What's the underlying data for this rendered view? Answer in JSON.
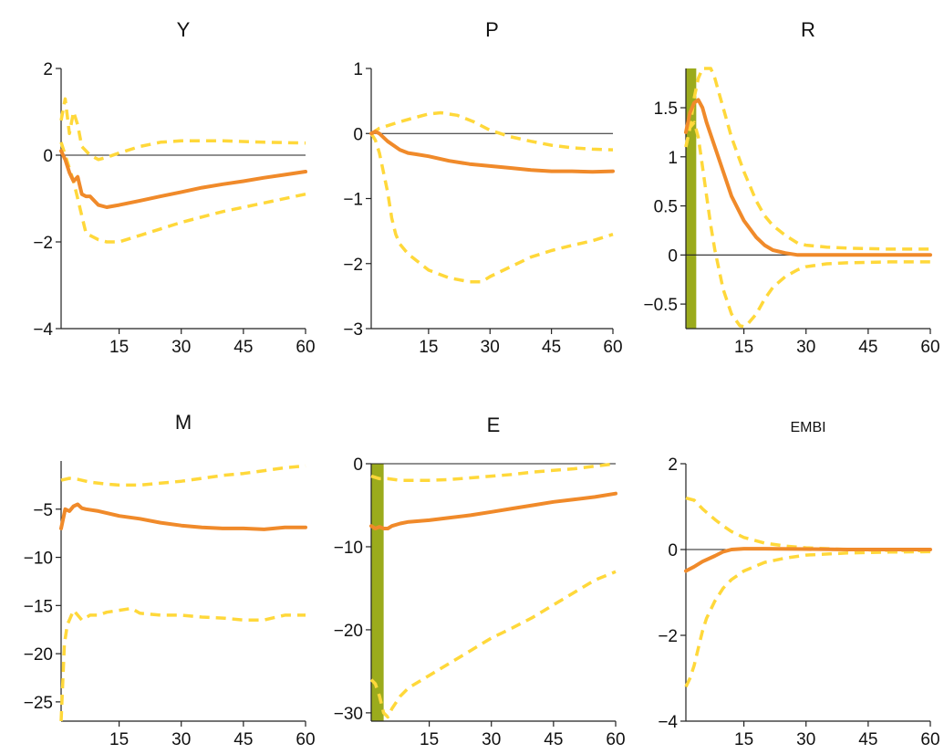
{
  "colors": {
    "median": "#f08a2a",
    "band": "#ffd83a",
    "shade": "#9bab1c",
    "axis": "#222222"
  },
  "chart_data": [
    {
      "type": "line",
      "title": "Y",
      "xlim": [
        1,
        60
      ],
      "ylim": [
        -4,
        2
      ],
      "xticks": [
        15,
        30,
        45,
        60
      ],
      "yticks": [
        2,
        0,
        -2,
        -4
      ],
      "ytick_labels": [
        "2",
        "0",
        "−2",
        "−4"
      ],
      "zero_line": true,
      "shaded_region": null,
      "series": [
        {
          "role": "median",
          "x": [
            1,
            2,
            3,
            4,
            5,
            6,
            7,
            8,
            9,
            10,
            12,
            15,
            20,
            25,
            30,
            35,
            40,
            45,
            50,
            55,
            60
          ],
          "y": [
            0.1,
            -0.1,
            -0.4,
            -0.6,
            -0.5,
            -0.9,
            -0.95,
            -0.95,
            -1.05,
            -1.15,
            -1.2,
            -1.15,
            -1.05,
            -0.95,
            -0.85,
            -0.75,
            -0.67,
            -0.6,
            -0.52,
            -0.45,
            -0.38
          ]
        },
        {
          "role": "upper",
          "x": [
            1,
            2,
            3,
            4,
            5,
            6,
            8,
            10,
            12,
            15,
            20,
            25,
            30,
            40,
            50,
            60
          ],
          "y": [
            0.8,
            1.3,
            0.5,
            1.0,
            0.7,
            0.2,
            0.0,
            -0.1,
            -0.05,
            0.05,
            0.2,
            0.3,
            0.33,
            0.33,
            0.3,
            0.28
          ]
        },
        {
          "role": "lower",
          "x": [
            1,
            2,
            3,
            4,
            5,
            6,
            7,
            8,
            10,
            12,
            15,
            20,
            25,
            30,
            40,
            50,
            60
          ],
          "y": [
            0.3,
            0.0,
            -0.3,
            -0.6,
            -1.0,
            -1.4,
            -1.8,
            -1.85,
            -1.95,
            -2.0,
            -2.0,
            -1.85,
            -1.7,
            -1.55,
            -1.3,
            -1.1,
            -0.9
          ]
        }
      ]
    },
    {
      "type": "line",
      "title": "P",
      "xlim": [
        1,
        60
      ],
      "ylim": [
        -3,
        1
      ],
      "xticks": [
        15,
        30,
        45,
        60
      ],
      "yticks": [
        1,
        0,
        -1,
        -2,
        -3
      ],
      "ytick_labels": [
        "1",
        "0",
        "−1",
        "−2",
        "−3"
      ],
      "zero_line": true,
      "shaded_region": null,
      "series": [
        {
          "role": "median",
          "x": [
            1,
            2,
            3,
            5,
            8,
            10,
            12,
            15,
            20,
            25,
            30,
            35,
            40,
            45,
            50,
            55,
            60
          ],
          "y": [
            0.0,
            0.03,
            0.0,
            -0.12,
            -0.25,
            -0.3,
            -0.32,
            -0.35,
            -0.42,
            -0.47,
            -0.5,
            -0.53,
            -0.56,
            -0.58,
            -0.58,
            -0.59,
            -0.58
          ]
        },
        {
          "role": "upper",
          "x": [
            1,
            3,
            5,
            8,
            12,
            15,
            18,
            22,
            26,
            30,
            35,
            40,
            45,
            50,
            55,
            60
          ],
          "y": [
            0.0,
            0.08,
            0.12,
            0.18,
            0.25,
            0.3,
            0.32,
            0.28,
            0.18,
            0.05,
            -0.05,
            -0.12,
            -0.18,
            -0.22,
            -0.24,
            -0.25
          ]
        },
        {
          "role": "lower",
          "x": [
            1,
            2,
            3,
            4,
            5,
            6,
            7,
            8,
            10,
            12,
            15,
            20,
            25,
            28,
            30,
            35,
            40,
            45,
            50,
            55,
            60
          ],
          "y": [
            0.0,
            -0.1,
            -0.3,
            -0.6,
            -0.9,
            -1.3,
            -1.55,
            -1.7,
            -1.85,
            -1.95,
            -2.1,
            -2.22,
            -2.28,
            -2.28,
            -2.2,
            -2.05,
            -1.9,
            -1.8,
            -1.72,
            -1.65,
            -1.55
          ]
        }
      ]
    },
    {
      "type": "line",
      "title": "R",
      "xlim": [
        1,
        60
      ],
      "ylim": [
        -0.75,
        1.9
      ],
      "xticks": [
        15,
        30,
        45,
        60
      ],
      "yticks": [
        1.5,
        1,
        0.5,
        0,
        -0.5
      ],
      "ytick_labels": [
        "1.5",
        "1",
        "0.5",
        "0",
        "−0.5"
      ],
      "zero_line": true,
      "shaded_region": [
        1,
        3.5
      ],
      "series": [
        {
          "role": "median",
          "x": [
            1,
            2,
            3,
            4,
            5,
            6,
            8,
            10,
            12,
            15,
            18,
            20,
            22,
            25,
            28,
            30,
            35,
            40,
            50,
            60
          ],
          "y": [
            1.25,
            1.45,
            1.55,
            1.58,
            1.5,
            1.35,
            1.1,
            0.85,
            0.6,
            0.35,
            0.18,
            0.1,
            0.05,
            0.02,
            0.0,
            0.0,
            0.0,
            0.0,
            0.0,
            0.0
          ]
        },
        {
          "role": "upper",
          "x": [
            1,
            2,
            3,
            4,
            5,
            6,
            7,
            8,
            9,
            10,
            12,
            15,
            18,
            20,
            22,
            25,
            28,
            30,
            35,
            40,
            50,
            60
          ],
          "y": [
            1.1,
            1.3,
            1.6,
            1.8,
            1.9,
            1.93,
            1.9,
            1.8,
            1.65,
            1.5,
            1.2,
            0.85,
            0.55,
            0.4,
            0.3,
            0.2,
            0.12,
            0.1,
            0.08,
            0.07,
            0.06,
            0.06
          ]
        },
        {
          "role": "lower",
          "x": [
            1,
            2,
            3,
            4,
            5,
            6,
            7,
            8,
            10,
            12,
            14,
            15,
            16,
            18,
            20,
            22,
            25,
            28,
            30,
            35,
            40,
            50,
            60
          ],
          "y": [
            1.1,
            1.3,
            1.35,
            1.2,
            0.9,
            0.6,
            0.3,
            0.05,
            -0.35,
            -0.6,
            -0.72,
            -0.73,
            -0.7,
            -0.6,
            -0.45,
            -0.33,
            -0.22,
            -0.15,
            -0.12,
            -0.09,
            -0.08,
            -0.07,
            -0.07
          ]
        }
      ]
    },
    {
      "type": "line",
      "title": "M",
      "xlim": [
        1,
        60
      ],
      "ylim": [
        -27,
        0
      ],
      "xticks": [
        15,
        30,
        45,
        60
      ],
      "yticks": [
        -5,
        -10,
        -15,
        -20,
        -25
      ],
      "ytick_labels": [
        "−5",
        "−10",
        "−15",
        "−20",
        "−25"
      ],
      "zero_line": false,
      "shaded_region": null,
      "series": [
        {
          "role": "median",
          "x": [
            1,
            2,
            3,
            4,
            5,
            6,
            7,
            10,
            15,
            20,
            25,
            30,
            35,
            40,
            45,
            50,
            55,
            60
          ],
          "y": [
            -7.0,
            -5.0,
            -5.2,
            -4.7,
            -4.5,
            -4.9,
            -5.0,
            -5.2,
            -5.7,
            -6.0,
            -6.4,
            -6.7,
            -6.9,
            -7.0,
            -7.0,
            -7.1,
            -6.9,
            -6.9
          ]
        },
        {
          "role": "upper",
          "x": [
            1,
            3,
            5,
            8,
            12,
            15,
            20,
            25,
            30,
            35,
            40,
            45,
            50,
            55,
            60
          ],
          "y": [
            -2.0,
            -1.8,
            -1.9,
            -2.2,
            -2.4,
            -2.5,
            -2.5,
            -2.3,
            -2.1,
            -1.8,
            -1.5,
            -1.3,
            -1.0,
            -0.7,
            -0.5
          ]
        },
        {
          "role": "lower",
          "x": [
            1,
            1.8,
            2.5,
            3,
            4,
            5,
            6,
            8,
            10,
            12,
            15,
            18,
            20,
            25,
            30,
            35,
            40,
            45,
            50,
            55,
            60
          ],
          "y": [
            -27.0,
            -19.0,
            -17.0,
            -16.5,
            -15.5,
            -16.0,
            -16.5,
            -16.0,
            -16.0,
            -15.7,
            -15.5,
            -15.3,
            -15.8,
            -16.0,
            -16.0,
            -16.2,
            -16.3,
            -16.5,
            -16.5,
            -16.0,
            -16.0
          ]
        }
      ]
    },
    {
      "type": "line",
      "title": "E",
      "xlim": [
        1,
        60
      ],
      "ylim": [
        -31,
        0
      ],
      "xticks": [
        15,
        30,
        45,
        60
      ],
      "yticks": [
        0,
        -10,
        -20,
        -30
      ],
      "ytick_labels": [
        "0",
        "−10",
        "−20",
        "−30"
      ],
      "zero_line": true,
      "shaded_region": [
        1,
        4
      ],
      "series": [
        {
          "role": "median",
          "x": [
            1,
            2,
            3,
            4,
            5,
            6,
            8,
            10,
            15,
            20,
            25,
            30,
            35,
            40,
            45,
            50,
            55,
            60
          ],
          "y": [
            -7.5,
            -7.8,
            -7.6,
            -7.8,
            -7.8,
            -7.5,
            -7.2,
            -7.0,
            -6.8,
            -6.5,
            -6.2,
            -5.8,
            -5.4,
            -5.0,
            -4.6,
            -4.3,
            -4.0,
            -3.6
          ]
        },
        {
          "role": "upper",
          "x": [
            1,
            3,
            5,
            8,
            12,
            15,
            20,
            25,
            30,
            35,
            40,
            45,
            50,
            55,
            60
          ],
          "y": [
            -1.5,
            -1.8,
            -1.8,
            -2.0,
            -2.0,
            -2.0,
            -1.9,
            -1.7,
            -1.5,
            -1.3,
            -1.0,
            -0.8,
            -0.6,
            -0.3,
            0.0
          ]
        },
        {
          "role": "lower",
          "x": [
            1,
            2,
            3,
            4,
            5,
            6,
            8,
            10,
            15,
            20,
            25,
            30,
            35,
            40,
            45,
            50,
            55,
            60
          ],
          "y": [
            -26.0,
            -26.5,
            -28.0,
            -30.0,
            -30.5,
            -29.5,
            -28.0,
            -27.0,
            -25.5,
            -24.0,
            -22.5,
            -21.0,
            -19.8,
            -18.5,
            -17.0,
            -15.5,
            -14.0,
            -13.0
          ]
        }
      ]
    },
    {
      "type": "line",
      "title": "EMBI",
      "xlim": [
        1,
        60
      ],
      "ylim": [
        -4,
        2
      ],
      "xticks": [
        15,
        30,
        45,
        60
      ],
      "yticks": [
        2,
        0,
        -2,
        -4
      ],
      "ytick_labels": [
        "2",
        "0",
        "−2",
        "−4"
      ],
      "zero_line": true,
      "shaded_region": null,
      "series": [
        {
          "role": "median",
          "x": [
            1,
            3,
            5,
            8,
            10,
            12,
            15,
            20,
            30,
            40,
            50,
            60
          ],
          "y": [
            -0.5,
            -0.4,
            -0.28,
            -0.15,
            -0.05,
            0.0,
            0.02,
            0.02,
            0.01,
            0.0,
            0.0,
            0.0
          ]
        },
        {
          "role": "upper",
          "x": [
            1,
            3,
            5,
            8,
            10,
            12,
            15,
            20,
            25,
            30,
            40,
            50,
            60
          ],
          "y": [
            1.2,
            1.15,
            0.95,
            0.7,
            0.55,
            0.42,
            0.28,
            0.15,
            0.08,
            0.04,
            0.0,
            -0.02,
            -0.03
          ]
        },
        {
          "role": "lower",
          "x": [
            1,
            2,
            3,
            4,
            5,
            6,
            8,
            10,
            12,
            15,
            20,
            25,
            30,
            40,
            50,
            60
          ],
          "y": [
            -3.2,
            -3.0,
            -2.7,
            -2.3,
            -1.9,
            -1.6,
            -1.2,
            -0.9,
            -0.7,
            -0.5,
            -0.3,
            -0.2,
            -0.13,
            -0.08,
            -0.06,
            -0.05
          ]
        }
      ]
    }
  ]
}
